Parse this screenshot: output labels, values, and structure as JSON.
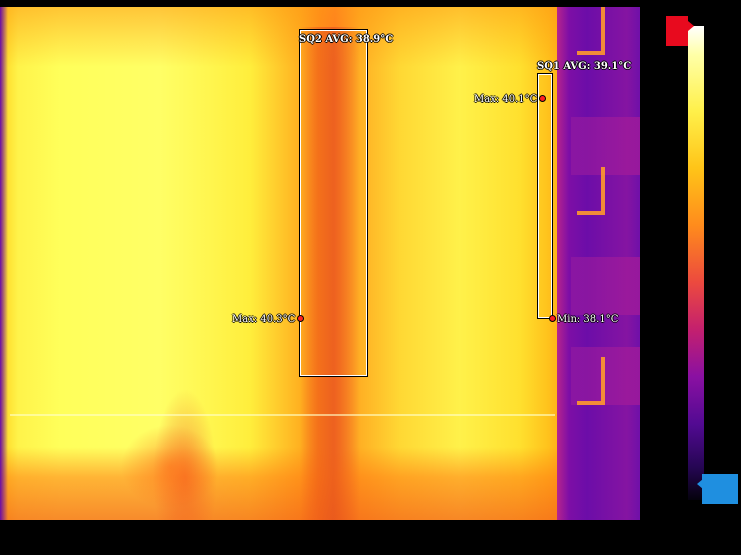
{
  "regions": [
    {
      "id": "SQ2",
      "label": "SQ2 AVG: 38.9°C",
      "max_label": "Max: 40.3°C"
    },
    {
      "id": "SQ1",
      "label": "SQ1 AVG: 39.1°C",
      "max_label": "Max: 40.1°C",
      "min_label": "Min: 38.1°C"
    }
  ],
  "colors": {
    "scale_max_swatch": "#e80a1e",
    "scale_min_swatch": "#1f8fe0",
    "marker": "#ff2020",
    "roi_border": "#ffffff"
  },
  "scale": {
    "max_text": "",
    "min_text": ""
  }
}
